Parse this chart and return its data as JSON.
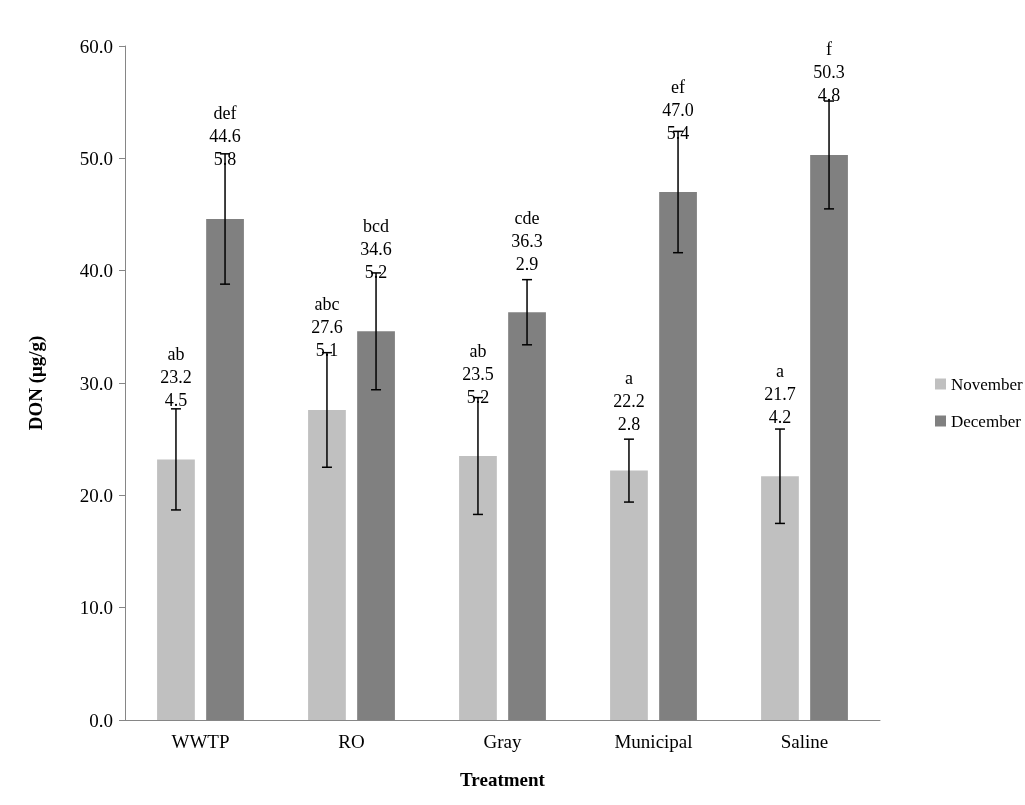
{
  "chart_data": {
    "type": "bar",
    "xlabel": "Treatment",
    "ylabel": "DON (μg/g)",
    "categories": [
      "WWTP",
      "RO",
      "Gray",
      "Municipal",
      "Saline"
    ],
    "series": [
      {
        "name": "November",
        "color": "#c0c0c0",
        "values": [
          23.2,
          27.6,
          23.5,
          22.2,
          21.7
        ],
        "errors": [
          4.5,
          5.1,
          5.2,
          2.8,
          4.2
        ],
        "value_labels": [
          "ab\n23.2\n4.5",
          "abc\n27.6\n5.1",
          "ab\n23.5\n5.2",
          "a\n22.2\n2.8",
          "a\n21.7\n4.2"
        ]
      },
      {
        "name": "December",
        "color": "#808080",
        "values": [
          44.6,
          34.6,
          36.3,
          47.0,
          50.3
        ],
        "errors": [
          5.8,
          5.2,
          2.9,
          5.4,
          4.8
        ],
        "value_labels": [
          "def\n44.6\n5.8",
          "bcd\n34.6\n5.2",
          "cde\n36.3\n2.9",
          "ef\n47.0\n5.4",
          "f\n50.3\n4.8"
        ]
      }
    ],
    "ylim": [
      0,
      60
    ],
    "yticks": [
      {
        "value": 0,
        "label": "0.0"
      },
      {
        "value": 10,
        "label": "10.0"
      },
      {
        "value": 20,
        "label": "20.0"
      },
      {
        "value": 30,
        "label": "30.0"
      },
      {
        "value": 40,
        "label": "40.0"
      },
      {
        "value": 50,
        "label": "50.0"
      },
      {
        "value": 60,
        "label": "60.0"
      }
    ],
    "legend": "right",
    "grid": false
  }
}
